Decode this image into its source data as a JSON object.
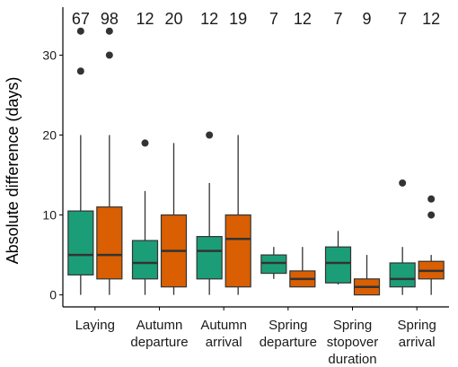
{
  "chart_data": {
    "type": "box",
    "ylabel": "Absolute difference (days)",
    "xlabel": "",
    "ylim": [
      -1.5,
      36
    ],
    "yticks": [
      0,
      10,
      20,
      30
    ],
    "grid": false,
    "legend": "none",
    "colors": [
      "#1b9e77",
      "#d95f02"
    ],
    "categories": [
      {
        "label": [
          "Laying"
        ],
        "counts": [
          "67",
          "98"
        ]
      },
      {
        "label": [
          "Autumn",
          "departure"
        ],
        "counts": [
          "12",
          "20"
        ]
      },
      {
        "label": [
          "Autumn",
          "arrival"
        ],
        "counts": [
          "12",
          "19"
        ]
      },
      {
        "label": [
          "Spring",
          "departure"
        ],
        "counts": [
          "7",
          "12"
        ]
      },
      {
        "label": [
          "Spring",
          "stopover",
          "duration"
        ],
        "counts": [
          "7",
          "9"
        ]
      },
      {
        "label": [
          "Spring",
          "arrival"
        ],
        "counts": [
          "7",
          "12"
        ]
      }
    ],
    "series": [
      {
        "color": "#1b9e77",
        "boxes": [
          {
            "min": 0,
            "q1": 2.5,
            "median": 5,
            "q3": 10.5,
            "max": 20,
            "outliers": [
              28,
              33
            ]
          },
          {
            "min": 0,
            "q1": 2,
            "median": 4,
            "q3": 6.8,
            "max": 13,
            "outliers": [
              19
            ]
          },
          {
            "min": 0,
            "q1": 2,
            "median": 5.5,
            "q3": 7.3,
            "max": 14,
            "outliers": [
              20
            ]
          },
          {
            "min": 2,
            "q1": 2.7,
            "median": 4,
            "q3": 5,
            "max": 6,
            "outliers": []
          },
          {
            "min": 1.3,
            "q1": 1.5,
            "median": 4,
            "q3": 6,
            "max": 8,
            "outliers": []
          },
          {
            "min": 0,
            "q1": 1,
            "median": 2,
            "q3": 4,
            "max": 6,
            "outliers": [
              14
            ]
          }
        ]
      },
      {
        "color": "#d95f02",
        "boxes": [
          {
            "min": 0,
            "q1": 2,
            "median": 5,
            "q3": 11,
            "max": 20,
            "outliers": [
              30,
              33
            ]
          },
          {
            "min": 0,
            "q1": 1,
            "median": 5.5,
            "q3": 10,
            "max": 19,
            "outliers": []
          },
          {
            "min": 0,
            "q1": 1,
            "median": 7,
            "q3": 10,
            "max": 20,
            "outliers": []
          },
          {
            "min": 1,
            "q1": 1,
            "median": 2,
            "q3": 3,
            "max": 6,
            "outliers": []
          },
          {
            "min": 0,
            "q1": 0,
            "median": 1,
            "q3": 2,
            "max": 5,
            "outliers": []
          },
          {
            "min": 0,
            "q1": 2,
            "median": 3,
            "q3": 4.2,
            "max": 5,
            "outliers": [
              10,
              12
            ]
          }
        ]
      }
    ]
  }
}
